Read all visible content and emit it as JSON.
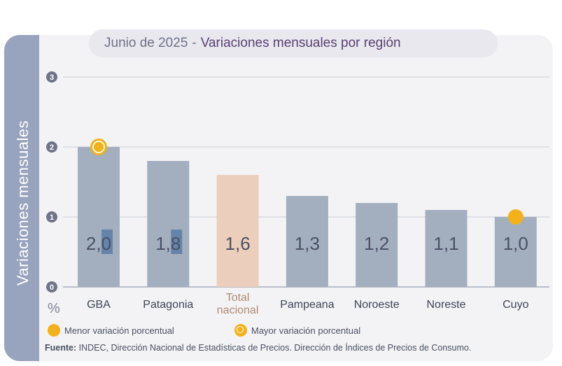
{
  "side_label": "Variaciones mensuales",
  "title": {
    "period": "Junio de 2025",
    "separator": "-",
    "main": "Variaciones mensuales por región"
  },
  "legend": {
    "min_label": "Menor variación porcentual",
    "max_label": "Mayor variación porcentual"
  },
  "source": {
    "label": "Fuente:",
    "text": "INDEC, Dirección Nacional de Estadísticas de Precios. Dirección de Índices de Precios de Consumo."
  },
  "colors": {
    "bar": "#a3afbf",
    "total_bar": "#ebcebc",
    "marker": "#f3b219",
    "label_highlight": "#5d7fa6"
  },
  "chart_data": {
    "type": "bar",
    "ylabel": "%",
    "ylim": [
      0,
      3
    ],
    "yticks": [
      0,
      1,
      2,
      3
    ],
    "grid": true,
    "categories": [
      {
        "lines": [
          "GBA"
        ]
      },
      {
        "lines": [
          "Patagonia"
        ]
      },
      {
        "lines": [
          "Total",
          "nacional"
        ],
        "highlight": true
      },
      {
        "lines": [
          "Pampeana"
        ]
      },
      {
        "lines": [
          "Noroeste"
        ]
      },
      {
        "lines": [
          "Noreste"
        ]
      },
      {
        "lines": [
          "Cuyo"
        ]
      }
    ],
    "values": [
      2.0,
      1.8,
      1.6,
      1.3,
      1.2,
      1.1,
      1.0
    ],
    "value_labels": [
      "2,0",
      "1,8",
      "1,6",
      "1,3",
      "1,2",
      "1,1",
      "1,0"
    ],
    "max_marker": "GBA",
    "min_marker": "Cuyo"
  }
}
